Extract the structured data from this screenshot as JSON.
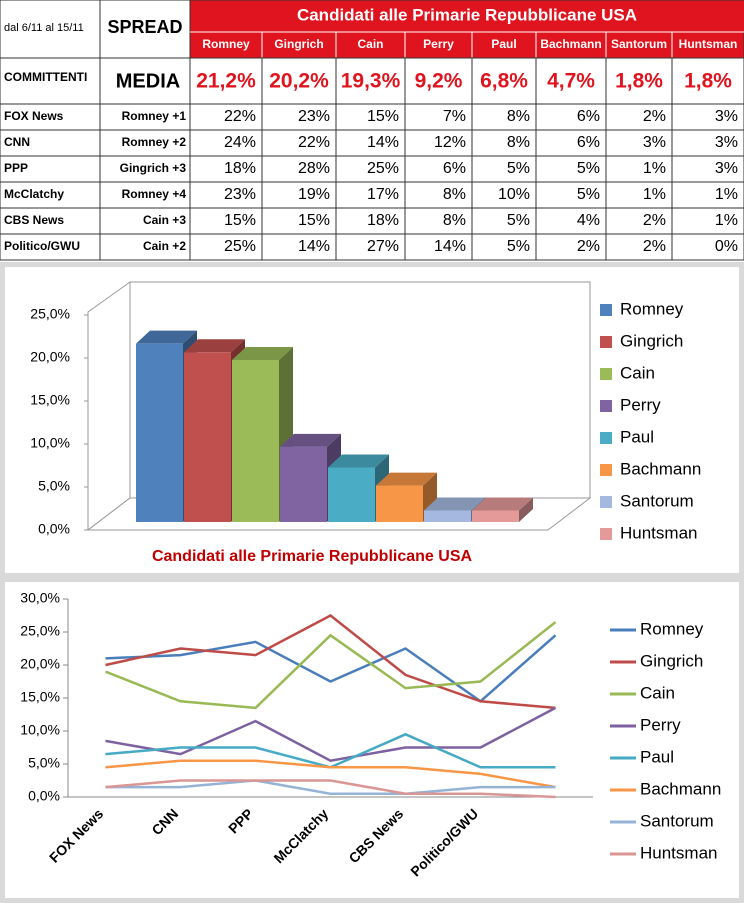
{
  "table": {
    "date_range": "dal 6/11 al 15/11",
    "spread_header": "SPREAD",
    "title": "Candidati alle Primarie Repubblicane USA",
    "candidates": [
      "Romney",
      "Gingrich",
      "Cain",
      "Perry",
      "Paul",
      "Bachmann",
      "Santorum",
      "Huntsman"
    ],
    "committenti": "COMMITTENTI",
    "media_label": "MEDIA",
    "media": [
      "21,2%",
      "20,2%",
      "19,3%",
      "9,2%",
      "6,8%",
      "4,7%",
      "1,8%",
      "1,8%"
    ],
    "rows": [
      [
        "FOX News",
        "Romney +1",
        "22%",
        "23%",
        "15%",
        "7%",
        "8%",
        "6%",
        "2%",
        "3%"
      ],
      [
        "CNN",
        "Romney +2",
        "24%",
        "22%",
        "14%",
        "12%",
        "8%",
        "6%",
        "3%",
        "3%"
      ],
      [
        "PPP",
        "Gingrich +3",
        "18%",
        "28%",
        "25%",
        "6%",
        "5%",
        "5%",
        "1%",
        "3%"
      ],
      [
        "McClatchy",
        "Romney +4",
        "23%",
        "19%",
        "17%",
        "8%",
        "10%",
        "5%",
        "1%",
        "1%"
      ],
      [
        "CBS News",
        "Cain +3",
        "15%",
        "15%",
        "18%",
        "8%",
        "5%",
        "4%",
        "2%",
        "1%"
      ],
      [
        "Politico/GWU",
        "Cain +2",
        "25%",
        "14%",
        "27%",
        "14%",
        "5%",
        "2%",
        "2%",
        "0%"
      ]
    ]
  },
  "chart_data": [
    {
      "type": "bar3d",
      "title": "Candidati alle Primarie Repubblicane USA",
      "categories": [
        null
      ],
      "ylim": [
        0,
        25
      ],
      "yticks": [
        {
          "value": 0,
          "label": "0,0%"
        },
        {
          "value": 5,
          "label": "5,0%"
        },
        {
          "value": 10,
          "label": "10,0%"
        },
        {
          "value": 15,
          "label": "15,0%"
        },
        {
          "value": 20,
          "label": "20,0%"
        },
        {
          "value": 25,
          "label": "25,0%"
        }
      ],
      "legend": "right",
      "series": [
        {
          "name": "Romney",
          "color": "#4f81bd",
          "values": [
            21.2
          ]
        },
        {
          "name": "Gingrich",
          "color": "#c0504d",
          "values": [
            20.2
          ]
        },
        {
          "name": "Cain",
          "color": "#9bbb59",
          "values": [
            19.3
          ]
        },
        {
          "name": "Perry",
          "color": "#8064a2",
          "values": [
            9.2
          ]
        },
        {
          "name": "Paul",
          "color": "#4bacc6",
          "values": [
            6.8
          ]
        },
        {
          "name": "Bachmann",
          "color": "#f79646",
          "values": [
            4.7
          ]
        },
        {
          "name": "Santorum",
          "color": "#a5b9e0",
          "values": [
            1.8
          ]
        },
        {
          "name": "Huntsman",
          "color": "#e39a99",
          "values": [
            1.8
          ]
        }
      ]
    },
    {
      "type": "line",
      "categories": [
        "FOX News",
        "CNN",
        "PPP",
        "McClatchy",
        "CBS News",
        "Politico/GWU",
        null
      ],
      "ylim": [
        0,
        30
      ],
      "yticks": [
        {
          "value": 0,
          "label": "0,0%"
        },
        {
          "value": 5,
          "label": "5,0%"
        },
        {
          "value": 10,
          "label": "10,0%"
        },
        {
          "value": 15,
          "label": "15,0%"
        },
        {
          "value": 20,
          "label": "20,0%"
        },
        {
          "value": 25,
          "label": "25,0%"
        },
        {
          "value": 30,
          "label": "30,0%"
        }
      ],
      "legend": "right",
      "series": [
        {
          "name": "Romney",
          "color": "#4a7ebb",
          "values": [
            21,
            21.5,
            23.5,
            17.5,
            22.5,
            14.5,
            24.5
          ]
        },
        {
          "name": "Gingrich",
          "color": "#be4b48",
          "values": [
            20,
            22.5,
            21.5,
            27.5,
            18.5,
            14.5,
            13.5
          ]
        },
        {
          "name": "Cain",
          "color": "#98b954",
          "values": [
            19,
            14.5,
            13.5,
            24.5,
            16.5,
            17.5,
            26.5
          ]
        },
        {
          "name": "Perry",
          "color": "#7d60a0",
          "values": [
            8.5,
            6.5,
            11.5,
            5.5,
            7.5,
            7.5,
            13.5
          ]
        },
        {
          "name": "Paul",
          "color": "#46aac5",
          "values": [
            6.5,
            7.5,
            7.5,
            4.5,
            9.5,
            4.5,
            4.5
          ]
        },
        {
          "name": "Bachmann",
          "color": "#f79646",
          "values": [
            4.5,
            5.5,
            5.5,
            4.5,
            4.5,
            3.5,
            1.5
          ]
        },
        {
          "name": "Santorum",
          "color": "#95b3d7",
          "values": [
            1.5,
            1.5,
            2.5,
            0.5,
            0.5,
            1.5,
            1.5
          ]
        },
        {
          "name": "Huntsman",
          "color": "#d99694",
          "values": [
            1.5,
            2.5,
            2.5,
            2.5,
            0.5,
            0.5,
            0
          ]
        }
      ]
    }
  ]
}
